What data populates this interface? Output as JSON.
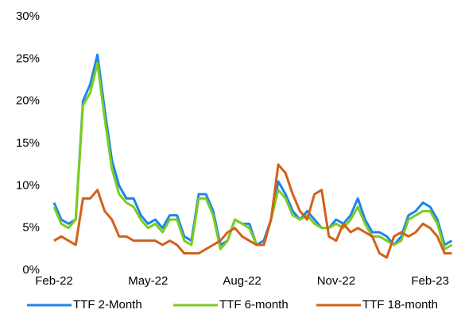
{
  "chart_data": {
    "type": "line",
    "categories": [
      "Feb-22",
      null,
      null,
      null,
      null,
      null,
      null,
      null,
      null,
      null,
      null,
      null,
      null,
      "May-22",
      null,
      null,
      null,
      null,
      null,
      null,
      null,
      null,
      null,
      null,
      null,
      null,
      "Aug-22",
      null,
      null,
      null,
      null,
      null,
      null,
      null,
      null,
      null,
      null,
      null,
      null,
      "Nov-22",
      null,
      null,
      null,
      null,
      null,
      null,
      null,
      null,
      null,
      null,
      null,
      null,
      "Feb-23",
      null,
      null,
      null
    ],
    "series": [
      {
        "name": "TTF 2-Month",
        "color": "#1c86e8",
        "values": [
          8,
          6,
          5.5,
          6,
          20,
          22,
          25.5,
          19,
          13,
          10,
          8.5,
          8.5,
          6.5,
          5.5,
          6,
          5,
          6.5,
          6.5,
          4,
          3.5,
          9,
          9,
          7,
          3,
          3.5,
          6,
          5.5,
          5.5,
          3,
          3.5,
          6,
          10.5,
          9,
          7,
          6,
          7,
          6,
          5,
          5,
          6,
          5.5,
          6.5,
          8.5,
          6,
          4.5,
          4.5,
          4,
          3,
          4,
          6.5,
          7,
          8,
          7.5,
          6,
          3,
          3.5
        ]
      },
      {
        "name": "TTF 6-month",
        "color": "#7dcc1f",
        "values": [
          7.5,
          5.5,
          5,
          6,
          19.5,
          21,
          24.5,
          18,
          12,
          9,
          8,
          7.5,
          6,
          5,
          5.5,
          4.5,
          6,
          6,
          3.5,
          3,
          8.5,
          8.5,
          6.5,
          2.5,
          3.5,
          6,
          5.5,
          5,
          3,
          3,
          6,
          9.5,
          8.5,
          6.5,
          6,
          6.5,
          5.5,
          5,
          5,
          5.5,
          5,
          6,
          7.5,
          5.5,
          4,
          4,
          3.5,
          3,
          3.5,
          6,
          6.5,
          7,
          7,
          5.5,
          2.5,
          3
        ]
      },
      {
        "name": "TTF 18-month",
        "color": "#d2601a",
        "values": [
          3.5,
          4,
          3.5,
          3,
          8.5,
          8.5,
          9.5,
          7,
          6,
          4,
          4,
          3.5,
          3.5,
          3.5,
          3.5,
          3,
          3.5,
          3,
          2,
          2,
          2,
          2.5,
          3,
          3.5,
          4.5,
          5,
          4,
          3.5,
          3,
          3,
          6,
          12.5,
          11.5,
          9,
          7,
          6,
          9,
          9.5,
          4,
          3.5,
          5.5,
          4.5,
          5,
          4.5,
          4,
          2,
          1.5,
          4,
          4.5,
          4,
          4.5,
          5.5,
          5,
          4,
          2,
          2
        ]
      }
    ],
    "ylim": [
      0,
      30
    ],
    "yticks": [
      {
        "value": 0,
        "label": "0%"
      },
      {
        "value": 5,
        "label": "5%"
      },
      {
        "value": 10,
        "label": "10%"
      },
      {
        "value": 15,
        "label": "15%"
      },
      {
        "value": 20,
        "label": "20%"
      },
      {
        "value": 25,
        "label": "25%"
      },
      {
        "value": 30,
        "label": "30%"
      }
    ],
    "grid": false
  }
}
